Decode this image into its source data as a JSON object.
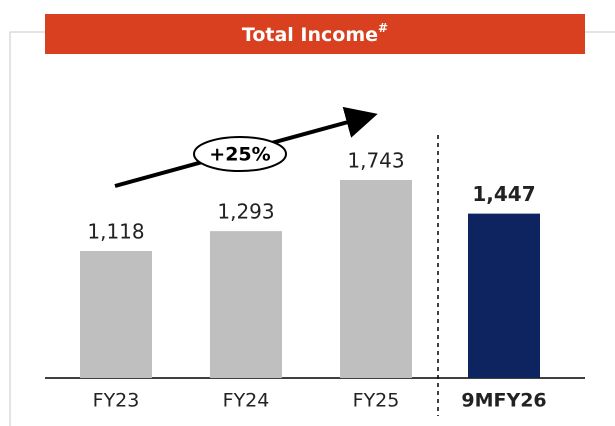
{
  "chart_data": {
    "type": "bar",
    "title": "Total Income",
    "title_superscript": "#",
    "categories": [
      "FY23",
      "FY24",
      "FY25",
      "9MFY26"
    ],
    "values": [
      1118,
      1293,
      1743,
      1447
    ],
    "value_labels": [
      "1,118",
      "1,293",
      "1,743",
      "1,447"
    ],
    "colors": [
      "#bfbfbf",
      "#bfbfbf",
      "#bfbfbf",
      "#0d2461"
    ],
    "bold": [
      false,
      false,
      false,
      true
    ],
    "annotation": "+25%"
  }
}
